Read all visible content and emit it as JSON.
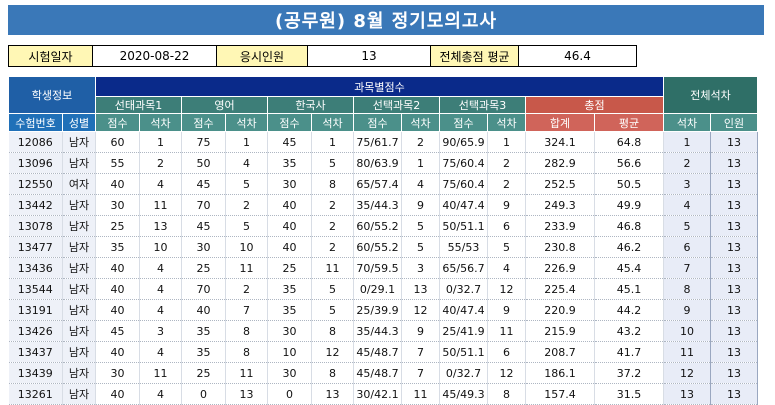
{
  "title": "(공무원) 8월 정기모의고사",
  "info": {
    "exam_date_label": "시험일자",
    "exam_date": "2020-08-22",
    "examinees_label": "응시인원",
    "examinees": "13",
    "avg_label": "전체총점 평균",
    "avg": "46.4"
  },
  "headers": {
    "student_info": "학생정보",
    "subject_scores": "과목별점수",
    "overall_rank": "전체석차",
    "subjects": [
      "선태과목1",
      "영어",
      "한국사",
      "선택과목2",
      "선택과목3"
    ],
    "total": "총점",
    "exam_no": "수험번호",
    "gender": "성별",
    "score": "점수",
    "rank": "석차",
    "sum": "합계",
    "mean": "평균",
    "count": "인원"
  },
  "rows": [
    [
      "12086",
      "남자",
      "60",
      "1",
      "75",
      "1",
      "45",
      "1",
      "75/61.7",
      "2",
      "90/65.9",
      "1",
      "324.1",
      "64.8",
      "1",
      "13"
    ],
    [
      "13096",
      "남자",
      "55",
      "2",
      "50",
      "4",
      "35",
      "5",
      "80/63.9",
      "1",
      "75/60.4",
      "2",
      "282.9",
      "56.6",
      "2",
      "13"
    ],
    [
      "12550",
      "여자",
      "40",
      "4",
      "45",
      "5",
      "30",
      "8",
      "65/57.4",
      "4",
      "75/60.4",
      "2",
      "252.5",
      "50.5",
      "3",
      "13"
    ],
    [
      "13442",
      "남자",
      "30",
      "11",
      "70",
      "2",
      "40",
      "2",
      "35/44.3",
      "9",
      "40/47.4",
      "9",
      "249.3",
      "49.9",
      "4",
      "13"
    ],
    [
      "13078",
      "남자",
      "25",
      "13",
      "45",
      "5",
      "40",
      "2",
      "60/55.2",
      "5",
      "50/51.1",
      "6",
      "233.9",
      "46.8",
      "5",
      "13"
    ],
    [
      "13477",
      "남자",
      "35",
      "10",
      "30",
      "10",
      "40",
      "2",
      "60/55.2",
      "5",
      "55/53",
      "5",
      "230.8",
      "46.2",
      "6",
      "13"
    ],
    [
      "13436",
      "남자",
      "40",
      "4",
      "25",
      "11",
      "25",
      "11",
      "70/59.5",
      "3",
      "65/56.7",
      "4",
      "226.9",
      "45.4",
      "7",
      "13"
    ],
    [
      "13544",
      "남자",
      "40",
      "4",
      "70",
      "2",
      "35",
      "5",
      "0/29.1",
      "13",
      "0/32.7",
      "12",
      "225.4",
      "45.1",
      "8",
      "13"
    ],
    [
      "13191",
      "남자",
      "40",
      "4",
      "40",
      "7",
      "35",
      "5",
      "25/39.9",
      "12",
      "40/47.4",
      "9",
      "220.9",
      "44.2",
      "9",
      "13"
    ],
    [
      "13426",
      "남자",
      "45",
      "3",
      "35",
      "8",
      "30",
      "8",
      "35/44.3",
      "9",
      "25/41.9",
      "11",
      "215.9",
      "43.2",
      "10",
      "13"
    ],
    [
      "13437",
      "남자",
      "40",
      "4",
      "35",
      "8",
      "10",
      "12",
      "45/48.7",
      "7",
      "50/51.1",
      "6",
      "208.7",
      "41.7",
      "11",
      "13"
    ],
    [
      "13439",
      "남자",
      "30",
      "11",
      "25",
      "11",
      "30",
      "8",
      "45/48.7",
      "7",
      "0/32.7",
      "12",
      "186.1",
      "37.2",
      "12",
      "13"
    ],
    [
      "13261",
      "남자",
      "40",
      "4",
      "0",
      "13",
      "0",
      "13",
      "30/42.1",
      "11",
      "45/49.3",
      "8",
      "157.4",
      "31.5",
      "13",
      "13"
    ]
  ]
}
